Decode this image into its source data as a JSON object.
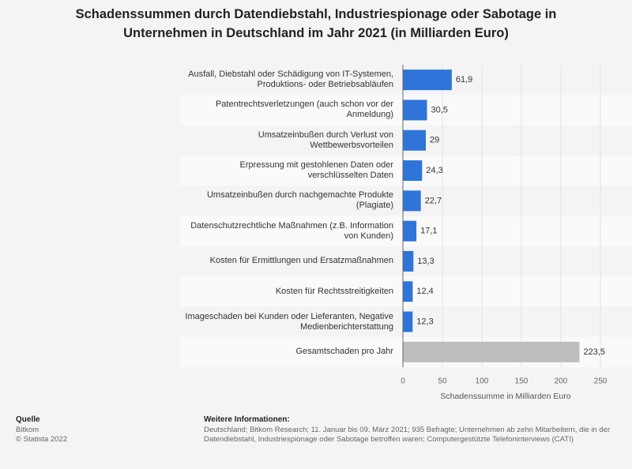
{
  "chart_data": {
    "type": "hbar",
    "title": "Schadenssummen durch Datendiebstahl, Industriespionage oder Sabotage in Unternehmen in Deutschland im Jahr 2021 (in Milliarden Euro)",
    "categories": [
      "Ausfall, Diebstahl oder Schädigung von IT-Systemen, Produktions- oder Betriebsabläufen",
      "Patentrechtsverletzungen (auch schon vor der Anmeldung)",
      "Umsatzeinbußen durch Verlust von Wettbewerbsvorteilen",
      "Erpressung mit gestohlenen Daten oder verschlüsselten Daten",
      "Umsatzeinbußen durch nachgemachte Produkte (Plagiate)",
      "Datenschutzrechtliche Maßnahmen (z.B. Information von Kunden)",
      "Kosten für Ermittlungen und Ersatzmaßnahmen",
      "Kosten für Rechtsstreitigkeiten",
      "Imageschaden bei Kunden oder Lieferanten, Negative Medienberichterstattung",
      "Gesamtschaden pro Jahr"
    ],
    "values": [
      61.9,
      30.5,
      29,
      24.3,
      22.7,
      17.1,
      13.3,
      12.4,
      12.3,
      223.5
    ],
    "value_labels": [
      "61,9",
      "30,5",
      "29",
      "24,3",
      "22,7",
      "17,1",
      "13,3",
      "12,4",
      "12,3",
      "223,5"
    ],
    "colors": [
      "#2f74d8",
      "#2f74d8",
      "#2f74d8",
      "#2f74d8",
      "#2f74d8",
      "#2f74d8",
      "#2f74d8",
      "#2f74d8",
      "#2f74d8",
      "#bdbdbd"
    ],
    "xlabel": "Schadenssumme in Milliarden Euro",
    "xlim": [
      0,
      250
    ],
    "xticks": [
      0,
      50,
      100,
      150,
      200,
      250
    ],
    "grid": true
  },
  "footer": {
    "source_heading": "Quelle",
    "source": "Bitkom",
    "copyright": "© Statista 2022",
    "info_heading": "Weitere Informationen:",
    "info_lines": [
      "Deutschland; Bitkom Research; 11. Januar bis 09. März 2021; 935 Befragte; Unternehmen ab zehn Mitarbeitern, die in der",
      "Datendiebstahl, Industriespionage oder Sabotage betroffen waren; Computergestützte Telefoninterviews (CATI)"
    ]
  }
}
